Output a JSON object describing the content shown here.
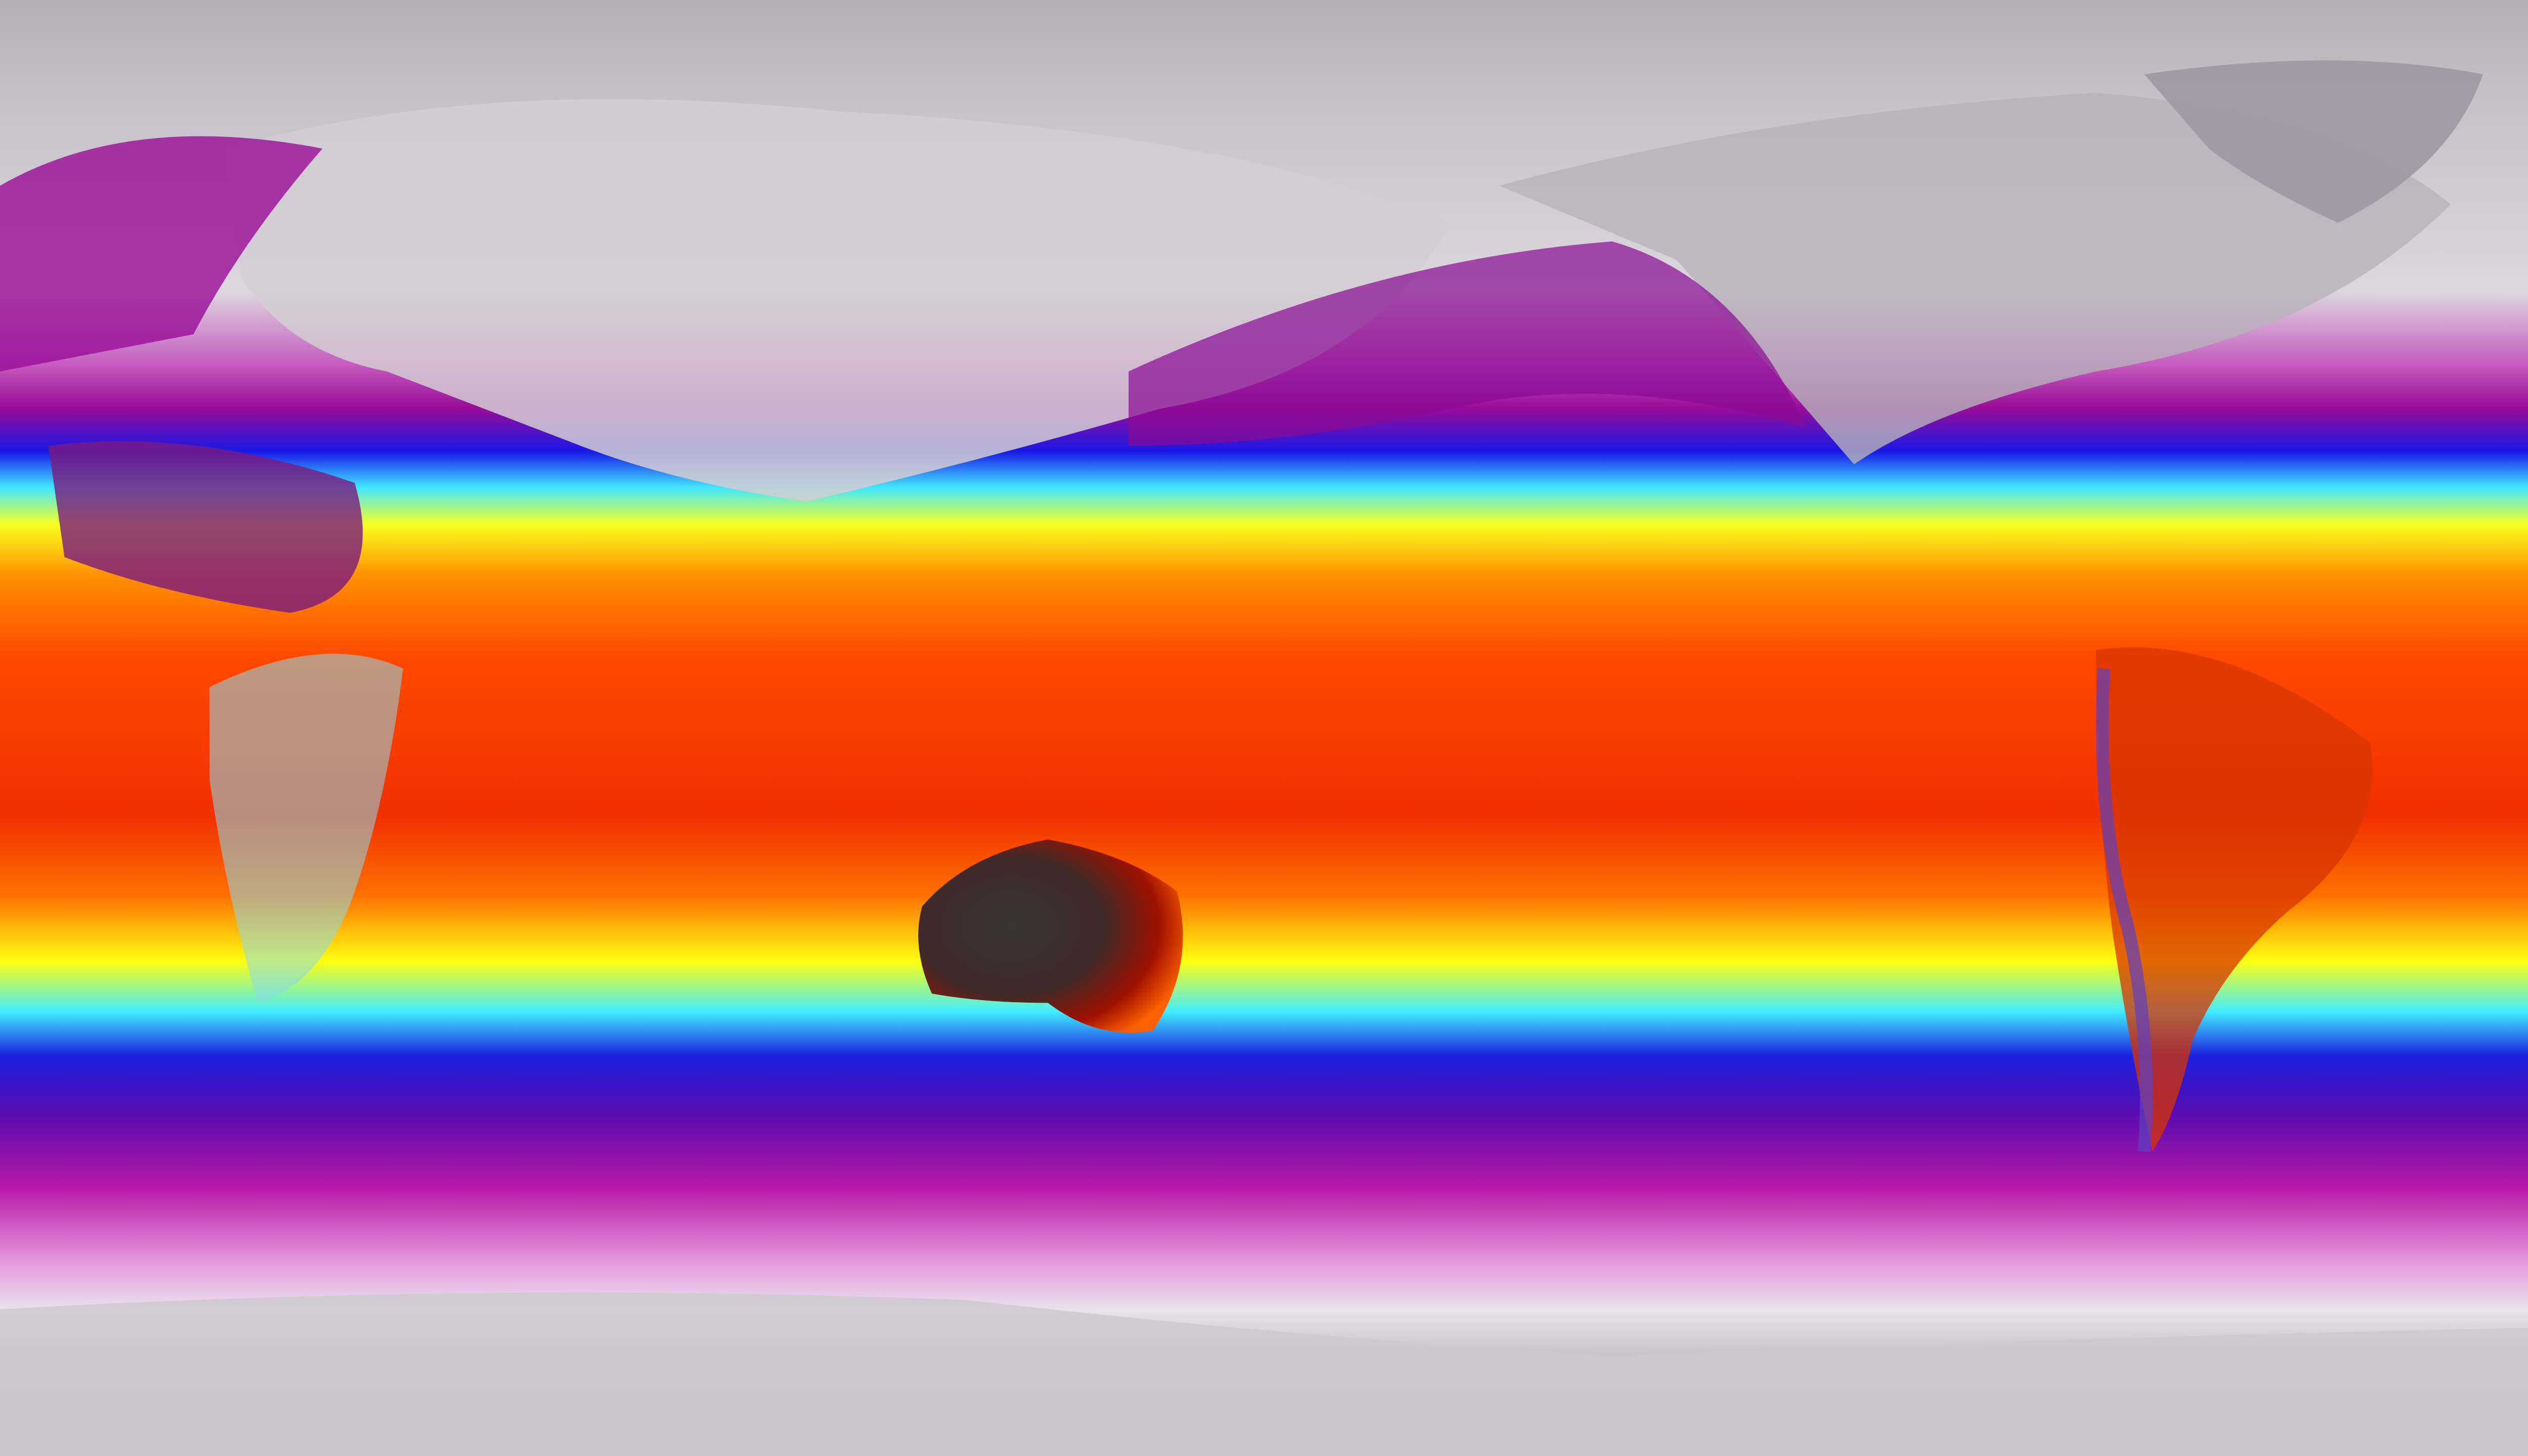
{
  "map": {
    "projection": "equirectangular",
    "palette": {
      "cold_land": "#d9d2da",
      "polar_grey": "#b9b3bd",
      "magenta": "#a0149c",
      "blue": "#1414e6",
      "cyan": "#3ee6ff",
      "yellow": "#ffff10",
      "orange": "#ff8a00",
      "red": "#f02a00",
      "dark_red": "#7a0a00",
      "dark_land": "#3a3434"
    }
  }
}
